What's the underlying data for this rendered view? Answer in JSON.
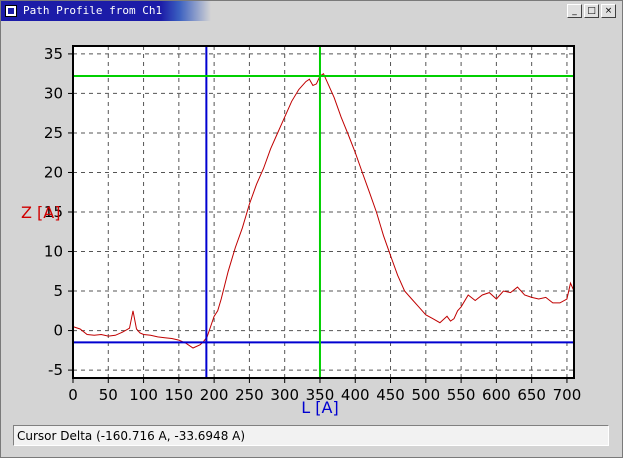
{
  "window": {
    "title": "Path Profile from Ch1",
    "buttons": {
      "minimize": "_",
      "maximize": "□",
      "close": "×"
    }
  },
  "status": {
    "text": "Cursor Delta (-160.716 A, -33.6948 A)"
  },
  "colors": {
    "profile_line": "#c00000",
    "cursor_blue": "#0000d0",
    "cursor_green": "#00d000",
    "ylabel": "#d00000",
    "xlabel": "#0000d0"
  },
  "chart_data": {
    "type": "line",
    "xlabel": "L [A]",
    "ylabel": "Z [A]",
    "xlim": [
      0,
      710
    ],
    "ylim": [
      -6,
      36
    ],
    "x_ticks": [
      0,
      50,
      100,
      150,
      200,
      250,
      300,
      350,
      400,
      450,
      500,
      550,
      600,
      650,
      700
    ],
    "y_ticks": [
      -5,
      0,
      5,
      10,
      15,
      20,
      25,
      30,
      35
    ],
    "grid": true,
    "cursors": {
      "blue": {
        "x": 189,
        "y": -1.5
      },
      "green": {
        "x": 350,
        "y": 32.2
      }
    },
    "series": [
      {
        "x": [
          0,
          10,
          20,
          30,
          40,
          50,
          60,
          70,
          80,
          85,
          90,
          95,
          100,
          110,
          120,
          130,
          140,
          150,
          160,
          170,
          180,
          185,
          190,
          195,
          200,
          205,
          210,
          220,
          230,
          240,
          250,
          260,
          270,
          280,
          290,
          300,
          310,
          320,
          330,
          335,
          340,
          345,
          350,
          355,
          360,
          370,
          380,
          390,
          400,
          410,
          420,
          430,
          440,
          450,
          460,
          470,
          480,
          490,
          500,
          510,
          520,
          530,
          535,
          540,
          545,
          550,
          560,
          570,
          580,
          590,
          600,
          610,
          620,
          630,
          640,
          650,
          660,
          670,
          680,
          690,
          700,
          705,
          710
        ],
        "y": [
          0.5,
          0.2,
          -0.5,
          -0.6,
          -0.5,
          -0.7,
          -0.6,
          -0.2,
          0.3,
          2.5,
          0.2,
          -0.3,
          -0.5,
          -0.6,
          -0.8,
          -0.9,
          -1.0,
          -1.2,
          -1.6,
          -2.2,
          -1.8,
          -1.4,
          -0.8,
          0.5,
          1.8,
          2.5,
          4.0,
          7.5,
          10.5,
          13.0,
          16.0,
          18.5,
          20.5,
          23.0,
          25.0,
          27.0,
          29.0,
          30.5,
          31.5,
          31.8,
          31.0,
          31.2,
          32.2,
          32.5,
          31.5,
          29.5,
          27.0,
          24.8,
          22.5,
          20.0,
          17.5,
          15.0,
          12.0,
          9.5,
          7.0,
          5.0,
          4.0,
          3.0,
          2.0,
          1.5,
          1.0,
          1.8,
          1.2,
          1.5,
          2.5,
          3.0,
          4.5,
          3.8,
          4.5,
          4.8,
          4.0,
          5.0,
          4.8,
          5.5,
          4.5,
          4.2,
          4.0,
          4.2,
          3.5,
          3.5,
          4.0,
          6.0,
          5.0
        ]
      }
    ]
  }
}
